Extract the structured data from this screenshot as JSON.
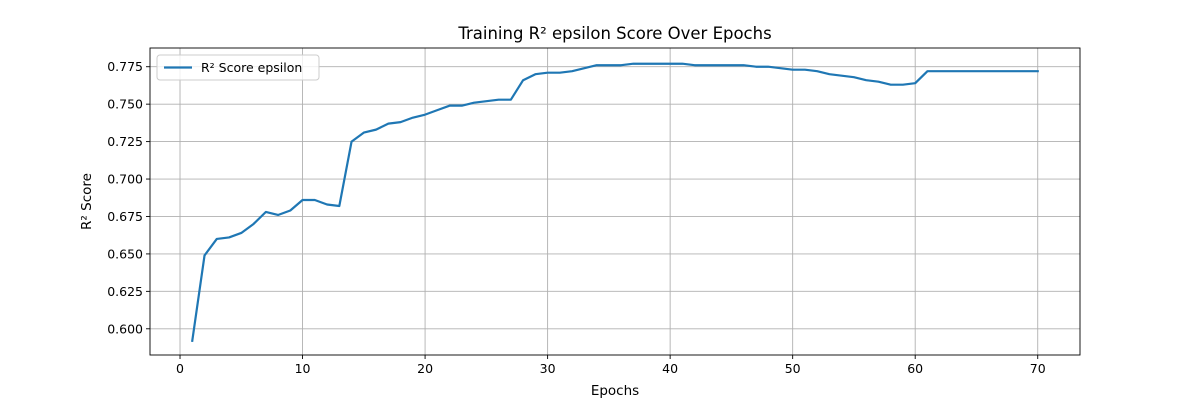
{
  "chart_data": {
    "type": "line",
    "title": "Training R² epsilon Score Over Epochs",
    "xlabel": "Epochs",
    "ylabel": "R² Score",
    "xlim": [
      -2.45,
      73.45
    ],
    "ylim": [
      0.5825,
      0.7875
    ],
    "xticks": [
      0,
      10,
      20,
      30,
      40,
      50,
      60,
      70
    ],
    "yticks": [
      0.6,
      0.625,
      0.65,
      0.675,
      0.7,
      0.725,
      0.75,
      0.775
    ],
    "ytick_labels": [
      "0.600",
      "0.625",
      "0.650",
      "0.675",
      "0.700",
      "0.725",
      "0.750",
      "0.775"
    ],
    "xtick_labels": [
      "0",
      "10",
      "20",
      "30",
      "40",
      "50",
      "60",
      "70"
    ],
    "grid": true,
    "legend_position": "upper-left",
    "series": [
      {
        "name": "R² Score epsilon",
        "color": "#1f77b4",
        "x": [
          1,
          2,
          3,
          4,
          5,
          6,
          7,
          8,
          9,
          10,
          11,
          12,
          13,
          14,
          15,
          16,
          17,
          18,
          19,
          20,
          21,
          22,
          23,
          24,
          25,
          26,
          27,
          28,
          29,
          30,
          31,
          32,
          33,
          34,
          35,
          36,
          37,
          38,
          39,
          40,
          41,
          42,
          43,
          44,
          45,
          46,
          47,
          48,
          49,
          50,
          51,
          52,
          53,
          54,
          55,
          56,
          57,
          58,
          59,
          60,
          61,
          62,
          63,
          64,
          65,
          66,
          67,
          68,
          69,
          70
        ],
        "values": [
          0.592,
          0.649,
          0.66,
          0.661,
          0.664,
          0.67,
          0.678,
          0.676,
          0.679,
          0.686,
          0.686,
          0.683,
          0.682,
          0.725,
          0.731,
          0.733,
          0.737,
          0.738,
          0.741,
          0.743,
          0.746,
          0.749,
          0.749,
          0.751,
          0.752,
          0.753,
          0.753,
          0.766,
          0.77,
          0.771,
          0.771,
          0.772,
          0.774,
          0.776,
          0.776,
          0.776,
          0.777,
          0.777,
          0.777,
          0.777,
          0.777,
          0.776,
          0.776,
          0.776,
          0.776,
          0.776,
          0.775,
          0.775,
          0.774,
          0.773,
          0.773,
          0.772,
          0.77,
          0.769,
          0.768,
          0.766,
          0.765,
          0.763,
          0.763,
          0.764,
          0.772,
          0.772,
          0.772,
          0.772,
          0.772,
          0.772,
          0.772,
          0.772,
          0.772,
          0.772
        ]
      }
    ]
  }
}
